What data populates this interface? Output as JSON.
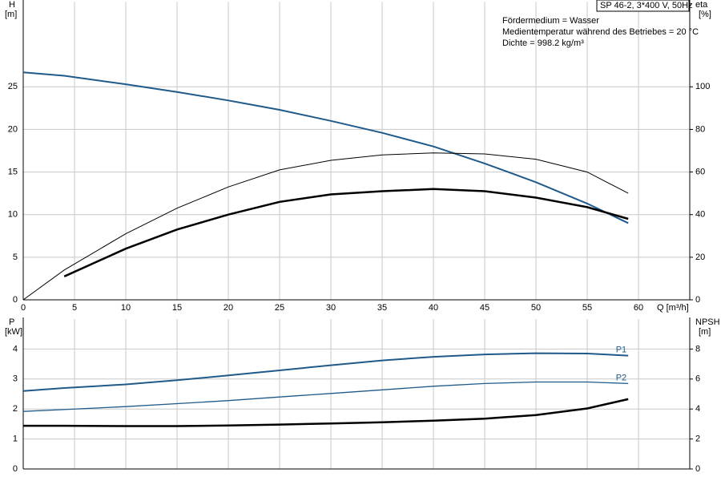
{
  "chart_data": [
    {
      "type": "line",
      "title": "SP 46-2, 3*400 V, 50Hz",
      "annotations": [
        "Fördermedium = Wasser",
        "Medientemperatur während des Betriebes = 20 °C",
        "Dichte = 998.2 kg/m³"
      ],
      "ylabel": "H",
      "yunit": "[m]",
      "y2label": "eta",
      "y2unit": "[%]",
      "xlabel": "Q [m³/h]",
      "x": [
        0,
        4,
        10,
        15,
        20,
        25,
        30,
        35,
        40,
        45,
        50,
        55,
        59
      ],
      "series": [
        {
          "color": "#1f5a8a",
          "values": [
            26.7,
            26.3,
            25.3,
            24.4,
            23.4,
            22.3,
            21.0,
            19.6,
            18.0,
            16.0,
            13.8,
            11.3,
            9.0
          ]
        },
        {
          "color": "#000000",
          "axis": "y2",
          "values": [
            0,
            14,
            31,
            43,
            53,
            61,
            65.5,
            68,
            69,
            68.5,
            66,
            60,
            50
          ]
        },
        {
          "color": "#000000",
          "axis": "y2",
          "values": [
            null,
            11,
            24,
            33,
            40,
            46,
            49.5,
            51,
            52,
            51,
            48,
            43.5,
            38
          ]
        }
      ],
      "xlim": [
        0,
        65
      ],
      "xticks": [
        0,
        5,
        10,
        15,
        20,
        25,
        30,
        35,
        40,
        45,
        50,
        55,
        60
      ],
      "ylim": [
        0,
        35
      ],
      "yticks": [
        0,
        5,
        10,
        15,
        20,
        25
      ],
      "y2lim": [
        0,
        140
      ],
      "y2ticks": [
        0,
        20,
        40,
        60,
        80,
        100
      ],
      "grid": true
    },
    {
      "type": "line",
      "ylabel": "P",
      "yunit": "[kW]",
      "y2label": "NPSH",
      "y2unit": "[m]",
      "x": [
        0,
        4,
        10,
        15,
        20,
        25,
        30,
        35,
        40,
        45,
        50,
        55,
        59
      ],
      "series": [
        {
          "name": "P1",
          "color": "#1f5a8a",
          "values": [
            2.6,
            2.7,
            2.82,
            2.96,
            3.12,
            3.29,
            3.46,
            3.62,
            3.74,
            3.82,
            3.86,
            3.85,
            3.78
          ]
        },
        {
          "name": "P2",
          "color": "#1f5a8a",
          "values": [
            1.92,
            1.98,
            2.08,
            2.18,
            2.28,
            2.4,
            2.52,
            2.64,
            2.76,
            2.85,
            2.9,
            2.9,
            2.85
          ]
        },
        {
          "color": "#000000",
          "axis": "y2",
          "values": [
            2.88,
            2.88,
            2.86,
            2.86,
            2.9,
            2.96,
            3.04,
            3.12,
            3.22,
            3.36,
            3.6,
            4.04,
            4.66
          ]
        }
      ],
      "xlim": [
        0,
        65
      ],
      "ylim": [
        0,
        5
      ],
      "yticks": [
        0,
        1,
        2,
        3,
        4
      ],
      "y2lim": [
        0,
        10
      ],
      "y2ticks": [
        0,
        2,
        4,
        6,
        8
      ],
      "grid": true
    }
  ]
}
